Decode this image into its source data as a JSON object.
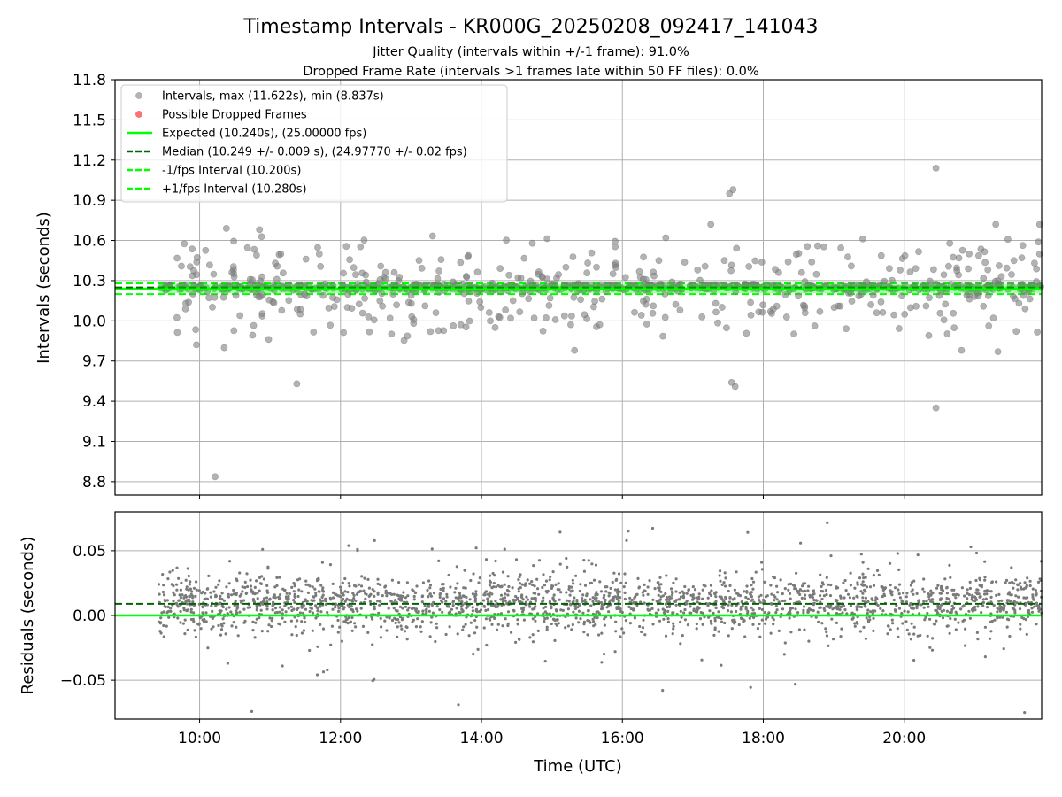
{
  "chart_data": {
    "type": "scatter",
    "title": "Timestamp Intervals - KR000G_20250208_092417_141043",
    "subtitle_1": "Jitter Quality (intervals within +/-1 frame): 91.0%",
    "subtitle_2": "Dropped Frame Rate (intervals >1 frames late within 50 FF files): 0.0%",
    "xlabel": "Time (UTC)",
    "x_ticks": [
      "10:00",
      "12:00",
      "14:00",
      "16:00",
      "18:00",
      "20:00"
    ],
    "x_tick_hours": [
      10,
      12,
      14,
      16,
      18,
      20
    ],
    "x_range_hours": [
      8.8,
      21.95
    ],
    "data_range_hours": [
      9.42,
      21.95
    ],
    "top_panel": {
      "ylabel": "Intervals (seconds)",
      "ylim": [
        8.7,
        11.8
      ],
      "y_ticks": [
        8.8,
        9.1,
        9.4,
        9.7,
        10.0,
        10.3,
        10.6,
        10.9,
        11.2,
        11.5,
        11.8
      ],
      "grid": true,
      "expected": 10.24,
      "median": 10.249,
      "lower_bound": 10.2,
      "upper_bound": 10.28,
      "max": 11.622,
      "min": 8.837,
      "notable_points": [
        {
          "x": 10.22,
          "y": 8.837
        },
        {
          "x": 11.38,
          "y": 9.53
        },
        {
          "x": 17.55,
          "y": 9.54
        },
        {
          "x": 17.6,
          "y": 9.51
        },
        {
          "x": 17.52,
          "y": 10.95
        },
        {
          "x": 17.57,
          "y": 10.98
        },
        {
          "x": 20.45,
          "y": 11.14
        },
        {
          "x": 20.45,
          "y": 9.35
        },
        {
          "x": 21.3,
          "y": 10.72
        },
        {
          "x": 21.33,
          "y": 9.77
        },
        {
          "x": 10.38,
          "y": 10.69
        },
        {
          "x": 10.85,
          "y": 10.68
        },
        {
          "x": 10.35,
          "y": 9.8
        }
      ]
    },
    "bottom_panel": {
      "ylabel": "Residuals (seconds)",
      "ylim": [
        -0.08,
        0.08
      ],
      "y_ticks": [
        0.05,
        0.0,
        -0.05
      ],
      "y_tick_labels": [
        "0.05",
        "0.00",
        "−0.05"
      ],
      "grid": true,
      "expected_residual": 0.0,
      "median_residual": 0.009
    },
    "legend": {
      "placement": "upper-left",
      "entries": [
        {
          "label": "Intervals, max (11.622s), min (8.837s)",
          "marker": "dot",
          "color": "#808080"
        },
        {
          "label": "Possible Dropped Frames",
          "marker": "dot",
          "color": "#ff0000"
        },
        {
          "label": "Expected (10.240s), (25.00000 fps)",
          "marker": "solid-line",
          "color": "#00ff00"
        },
        {
          "label": "Median (10.249 +/- 0.009 s), (24.97770 +/- 0.02 fps)",
          "marker": "dashed-line",
          "color": "#006400"
        },
        {
          "label": "-1/fps Interval (10.200s)",
          "marker": "dashed-line",
          "color": "#00ff00"
        },
        {
          "label": "+1/fps Interval (10.280s)",
          "marker": "dashed-line",
          "color": "#00ff00"
        }
      ]
    },
    "colors": {
      "points": "#808080",
      "dropped": "#ff0000",
      "expected": "#00ff00",
      "median": "#006400",
      "bounds": "#00ff00",
      "grid": "#b0b0b0"
    }
  }
}
